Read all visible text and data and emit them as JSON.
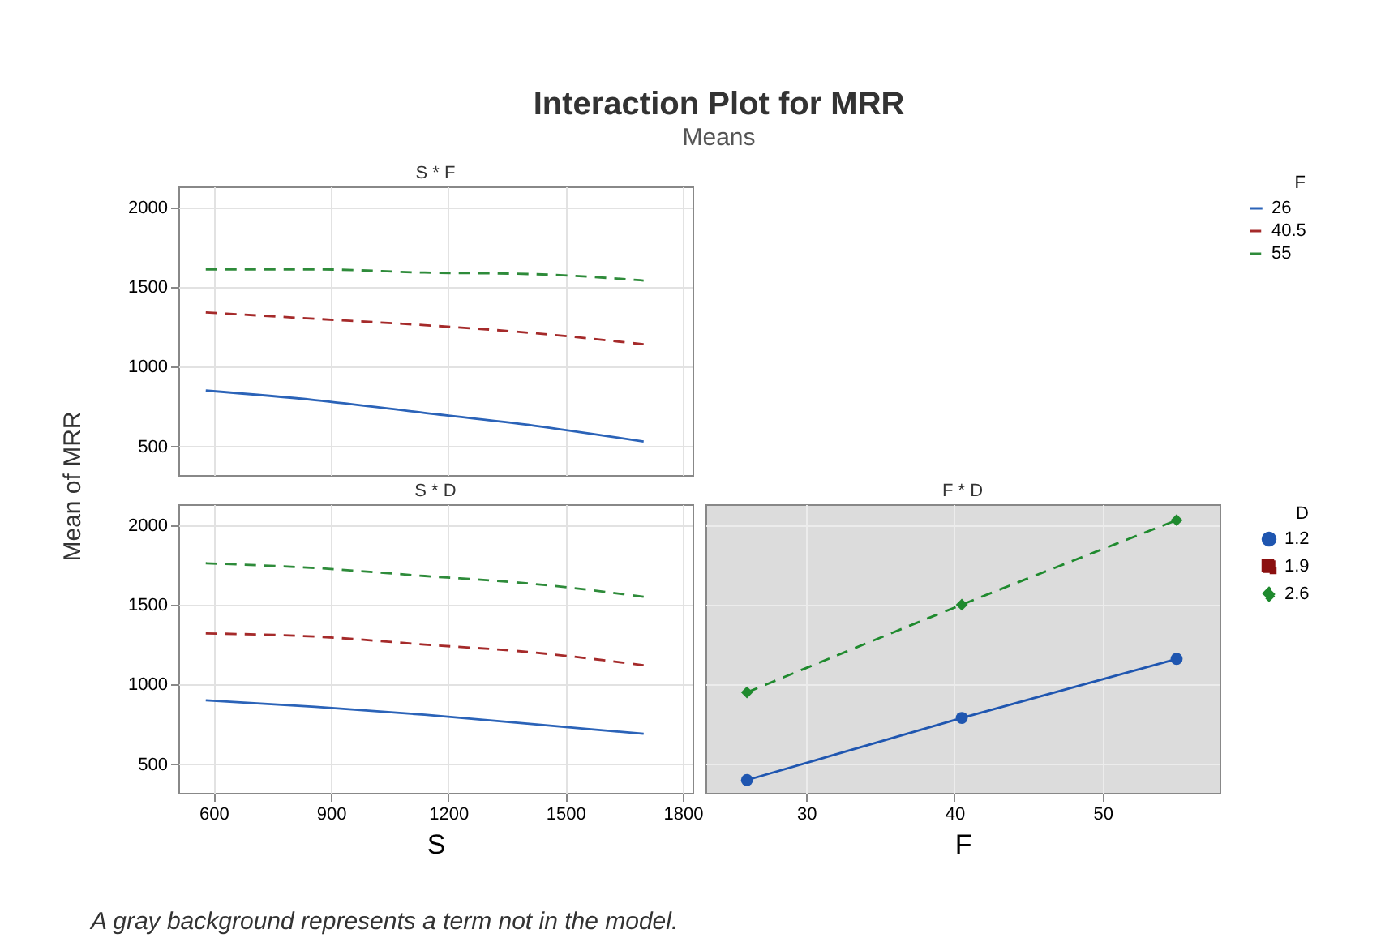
{
  "chart_data": [
    {
      "type": "other",
      "title": "Interaction Plot for MRR",
      "subtitle": "Means",
      "annotations": [
        "A gray background represents a term not in the model."
      ]
    },
    {
      "type": "line",
      "title": "S * F",
      "ylabel": "Mean of MRR",
      "x": [
        580,
        860,
        1140,
        1420,
        1700
      ],
      "xlim": [
        510,
        1825
      ],
      "xticks": [
        600,
        900,
        1200,
        1500,
        1800
      ],
      "ylim": [
        320,
        2130
      ],
      "yticks": [
        500,
        1000,
        1500,
        2000
      ],
      "grid": true,
      "tick_labels": "y",
      "legend": "top right",
      "legend_title": "F",
      "series": [
        {
          "name": "26",
          "color": "#2b63b8",
          "line_style": "solid",
          "values": [
            850,
            790,
            710,
            630,
            530
          ]
        },
        {
          "name": "40.5",
          "color": "#a52a2a",
          "line_style": "dashed",
          "values": [
            1340,
            1300,
            1260,
            1210,
            1140
          ]
        },
        {
          "name": "55",
          "color": "#2e8b3a",
          "line_style": "dashed",
          "values": [
            1610,
            1610,
            1590,
            1580,
            1540
          ]
        }
      ]
    },
    {
      "type": "line",
      "title": "S * D",
      "xlabel": "S",
      "x": [
        580,
        860,
        1140,
        1420,
        1700
      ],
      "xlim": [
        510,
        1825
      ],
      "xticks": [
        600,
        900,
        1200,
        1500,
        1800
      ],
      "ylim": [
        320,
        2130
      ],
      "yticks": [
        500,
        1000,
        1500,
        2000
      ],
      "grid": true,
      "series": [
        {
          "color": "#2b63b8",
          "line_style": "solid",
          "values": [
            900,
            860,
            810,
            750,
            690
          ]
        },
        {
          "color": "#a52a2a",
          "line_style": "dashed",
          "values": [
            1320,
            1300,
            1250,
            1200,
            1120
          ]
        },
        {
          "color": "#2e8b3a",
          "line_style": "dashed",
          "values": [
            1760,
            1730,
            1680,
            1630,
            1550
          ]
        }
      ]
    },
    {
      "type": "line",
      "title": "F * D",
      "xlabel": "F",
      "x": [
        26,
        40.5,
        55
      ],
      "xlim": [
        23.2,
        57.9
      ],
      "xticks": [
        30,
        40,
        50
      ],
      "ylim": [
        320,
        2130
      ],
      "yticks": [
        500,
        1000,
        1500,
        2000
      ],
      "grid": true,
      "tick_labels": "x",
      "legend": "right",
      "legend_title": "D",
      "series": [
        {
          "name": "1.2",
          "color": "#1f56b0",
          "line_style": "solid",
          "marker": "circle",
          "values": [
            400,
            790,
            1160
          ]
        },
        {
          "name": "1.9",
          "color": "#8b1010",
          "line_style": "dashed",
          "marker": "square",
          "values": [
            null,
            null,
            null
          ]
        },
        {
          "name": "2.6",
          "color": "#1f8a2e",
          "line_style": "dashed",
          "marker": "diamond",
          "values": [
            950,
            1500,
            2030
          ]
        }
      ]
    }
  ]
}
